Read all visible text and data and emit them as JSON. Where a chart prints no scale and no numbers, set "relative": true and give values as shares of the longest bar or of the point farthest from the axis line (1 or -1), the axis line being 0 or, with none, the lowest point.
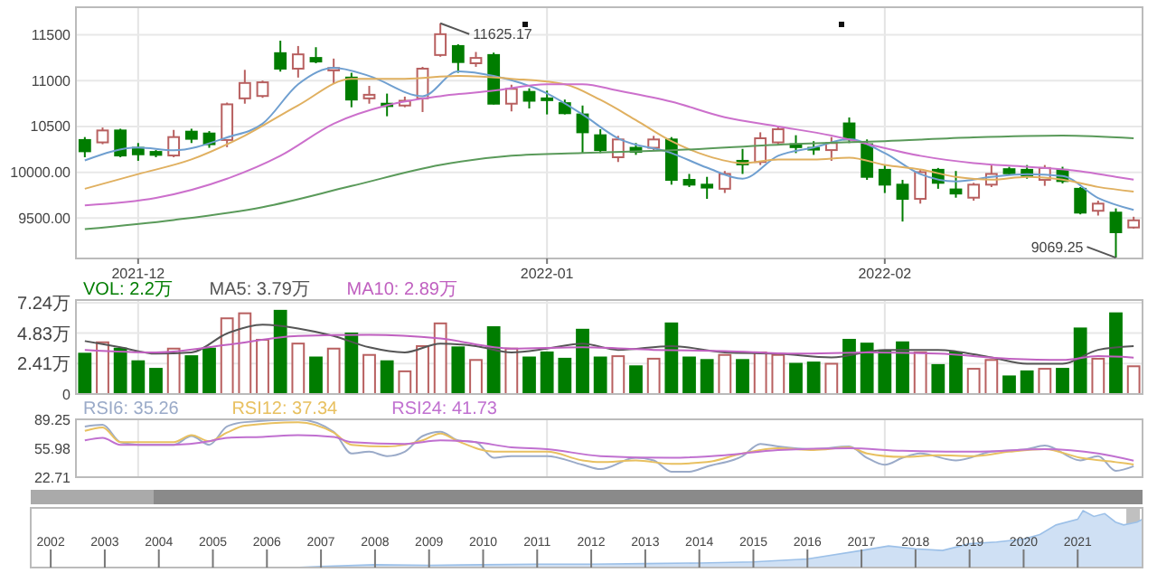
{
  "chart_data": [
    {
      "type": "candlestick",
      "categories": [
        null,
        null,
        null,
        "2021-12",
        null,
        null,
        null,
        null,
        null,
        null,
        null,
        null,
        null,
        null,
        null,
        null,
        null,
        null,
        null,
        null,
        null,
        null,
        null,
        null,
        null,
        null,
        "2022-01",
        null,
        null,
        null,
        null,
        null,
        null,
        null,
        null,
        null,
        null,
        null,
        null,
        null,
        null,
        null,
        null,
        null,
        null,
        "2022-02",
        null,
        null,
        null,
        null,
        null,
        null,
        null,
        null,
        null,
        null,
        null,
        null,
        null,
        null
      ],
      "series": [
        {
          "colors": [
            "#007d00",
            "#b86060",
            "#007d00",
            "#007d00",
            "#007d00",
            "#b86060",
            "#007d00",
            "#007d00",
            "#b86060",
            "#b86060",
            "#b86060",
            "#007d00",
            "#b86060",
            "#007d00",
            "#b86060",
            "#007d00",
            "#b86060",
            "#007d00",
            "#b86060",
            "#b86060",
            "#b86060",
            "#007d00",
            "#b86060",
            "#007d00",
            "#b86060",
            "#007d00",
            "#007d00",
            "#007d00",
            "#007d00",
            "#007d00",
            "#b86060",
            "#007d00",
            "#b86060",
            "#007d00",
            "#007d00",
            "#007d00",
            "#b86060",
            "#007d00",
            "#b86060",
            "#b86060",
            "#007d00",
            "#007d00",
            "#b86060",
            "#007d00",
            "#007d00",
            "#007d00",
            "#007d00",
            "#b86060",
            "#007d00",
            "#007d00",
            "#b86060",
            "#b86060",
            "#007d00",
            "#007d00",
            "#b86060",
            "#007d00",
            "#007d00",
            "#b86060",
            "#007d00",
            "#b86060"
          ],
          "ohlc": [
            [
              10352,
              10384,
              10164,
              10229
            ],
            [
              10326,
              10488,
              10306,
              10456
            ],
            [
              10456,
              10475,
              10164,
              10183
            ],
            [
              10267,
              10319,
              10125,
              10196
            ],
            [
              10222,
              10242,
              10164,
              10190
            ],
            [
              10183,
              10462,
              10164,
              10384
            ],
            [
              10443,
              10475,
              10319,
              10365
            ],
            [
              10423,
              10449,
              10267,
              10306
            ],
            [
              10352,
              10760,
              10274,
              10741
            ],
            [
              10806,
              11117,
              10748,
              10974
            ],
            [
              10832,
              11000,
              10812,
              10981
            ],
            [
              11299,
              11435,
              11098,
              11130
            ],
            [
              11130,
              11377,
              11033,
              11286
            ],
            [
              11247,
              11364,
              11189,
              11208
            ],
            [
              11111,
              11240,
              10968,
              11137
            ],
            [
              11033,
              11085,
              10709,
              10793
            ],
            [
              10806,
              10942,
              10748,
              10845
            ],
            [
              10748,
              10858,
              10611,
              10722
            ],
            [
              10728,
              10825,
              10709,
              10780
            ],
            [
              10806,
              11150,
              10657,
              11130
            ],
            [
              11279,
              11625.17,
              11260,
              11506
            ],
            [
              11377,
              11396,
              11085,
              11202
            ],
            [
              11189,
              11312,
              11150,
              11247
            ],
            [
              11279,
              11305,
              10740,
              10748
            ],
            [
              10748,
              10955,
              10664,
              10910
            ],
            [
              10877,
              10916,
              10696,
              10780
            ],
            [
              10806,
              10890,
              10631,
              10793
            ],
            [
              10754,
              10793,
              10631,
              10644
            ],
            [
              10631,
              10728,
              10209,
              10436
            ],
            [
              10404,
              10469,
              10209,
              10242
            ],
            [
              10164,
              10397,
              10112,
              10358
            ],
            [
              10267,
              10319,
              10190,
              10222
            ],
            [
              10267,
              10397,
              10242,
              10358
            ],
            [
              10358,
              10384,
              9865,
              9917
            ],
            [
              9917,
              9982,
              9839,
              9865
            ],
            [
              9865,
              9950,
              9710,
              9833
            ],
            [
              9820,
              10014,
              9774,
              9982
            ],
            [
              10125,
              10255,
              9982,
              10086
            ],
            [
              10112,
              10436,
              10079,
              10371
            ],
            [
              10326,
              10501,
              10293,
              10469
            ],
            [
              10306,
              10404,
              10209,
              10274
            ],
            [
              10267,
              10339,
              10190,
              10255
            ],
            [
              10242,
              10384,
              10125,
              10319
            ],
            [
              10533,
              10598,
              10319,
              10358
            ],
            [
              10306,
              10358,
              9917,
              9950
            ],
            [
              10027,
              10079,
              9774,
              9865
            ],
            [
              9865,
              9917,
              9463,
              9710
            ],
            [
              9710,
              10034,
              9658,
              10001
            ],
            [
              10027,
              10047,
              9820,
              9885
            ],
            [
              9813,
              10014,
              9723,
              9768
            ],
            [
              9723,
              9885,
              9690,
              9865
            ],
            [
              9865,
              10079,
              9839,
              9982
            ],
            [
              10034,
              10060,
              9969,
              9989
            ],
            [
              10027,
              10079,
              9930,
              9963
            ],
            [
              9917,
              10079,
              9852,
              10047
            ],
            [
              10027,
              10060,
              9878,
              9904
            ],
            [
              9820,
              9839,
              9541,
              9560
            ],
            [
              9580,
              9690,
              9528,
              9658
            ],
            [
              9560,
              9606,
              9069.25,
              9346
            ],
            [
              9398,
              9515,
              9385,
              9476
            ]
          ]
        },
        {
          "type": "line",
          "color": "#6f9fd0",
          "values": [
            10130,
            null,
            null,
            10270,
            null,
            10240,
            null,
            null,
            10380,
            null,
            10530,
            null,
            10960,
            null,
            11140,
            null,
            11050,
            null,
            null,
            10830,
            null,
            11100,
            null,
            11050,
            null,
            null,
            10860,
            null,
            10630,
            null,
            10370,
            null,
            null,
            10210,
            null,
            10050,
            null,
            9930,
            null,
            10180,
            null,
            10270,
            null,
            10360,
            null,
            10210,
            null,
            9980,
            null,
            9900,
            null,
            9950,
            null,
            9980,
            null,
            9960,
            null,
            9720,
            null,
            9590
          ]
        },
        {
          "type": "line",
          "color": "#e0b060",
          "values": [
            9820,
            null,
            null,
            9980,
            null,
            null,
            10140,
            null,
            null,
            10400,
            null,
            null,
            10730,
            null,
            null,
            11020,
            null,
            null,
            11020,
            null,
            null,
            11050,
            null,
            null,
            11020,
            null,
            null,
            10960,
            null,
            10790,
            null,
            10570,
            null,
            10340,
            null,
            10180,
            null,
            10100,
            null,
            10140,
            null,
            10140,
            null,
            10160,
            null,
            10080,
            null,
            10030,
            null,
            9950,
            null,
            9920,
            null,
            9950,
            null,
            9920,
            null,
            9840,
            null,
            9790
          ]
        },
        {
          "type": "line",
          "color": "#cc70cc",
          "values": [
            9640,
            null,
            null,
            null,
            9720,
            null,
            null,
            null,
            9930,
            null,
            null,
            10180,
            null,
            null,
            10530,
            null,
            null,
            10730,
            null,
            null,
            10830,
            null,
            null,
            10890,
            null,
            null,
            10960,
            null,
            10960,
            null,
            10890,
            null,
            null,
            10770,
            null,
            null,
            10600,
            null,
            null,
            10500,
            null,
            null,
            10400,
            null,
            10310,
            null,
            null,
            10180,
            null,
            null,
            10100,
            null,
            null,
            10060,
            null,
            null,
            10010,
            null,
            9950,
            9920
          ]
        },
        {
          "type": "line",
          "color": "#5a9a5a",
          "values": [
            9380,
            null,
            null,
            null,
            null,
            9480,
            null,
            null,
            null,
            null,
            9620,
            null,
            null,
            null,
            null,
            9850,
            null,
            null,
            null,
            null,
            10080,
            null,
            null,
            null,
            10180,
            null,
            null,
            null,
            10210,
            null,
            null,
            null,
            null,
            10240,
            null,
            null,
            null,
            null,
            null,
            null,
            10310,
            null,
            null,
            null,
            null,
            10340,
            null,
            null,
            null,
            null,
            10380,
            null,
            null,
            null,
            null,
            10400,
            null,
            null,
            null,
            10370
          ]
        }
      ],
      "ylim": [
        9060,
        11800
      ],
      "yticks": [
        11500,
        11000,
        10500,
        {
          "value": 10000,
          "label": "10000.00"
        },
        {
          "value": 9500,
          "label": "9500.00"
        }
      ],
      "grid": true,
      "annotations": [
        "11625.17",
        "9069.25"
      ]
    },
    {
      "type": "bar",
      "categories": [
        null,
        null,
        null,
        "2021-12",
        null,
        null,
        null,
        null,
        null,
        null,
        null,
        null,
        null,
        null,
        null,
        null,
        null,
        null,
        null,
        null,
        null,
        null,
        null,
        null,
        null,
        null,
        "2022-01",
        null,
        null,
        null,
        null,
        null,
        null,
        null,
        null,
        null,
        null,
        null,
        null,
        null,
        null,
        null,
        null,
        null,
        null,
        "2022-02",
        null,
        null,
        null,
        null,
        null,
        null,
        null,
        null,
        null,
        null,
        null,
        null,
        null,
        null
      ],
      "series": [
        {
          "name": "VOL: 2.2万",
          "color": "#007d00",
          "colors": [
            "#007d00",
            "#b86060",
            "#007d00",
            "#007d00",
            "#007d00",
            "#b86060",
            "#007d00",
            "#007d00",
            "#b86060",
            "#b86060",
            "#b86060",
            "#007d00",
            "#b86060",
            "#007d00",
            "#b86060",
            "#007d00",
            "#b86060",
            "#007d00",
            "#b86060",
            "#b86060",
            "#b86060",
            "#007d00",
            "#b86060",
            "#007d00",
            "#b86060",
            "#007d00",
            "#007d00",
            "#007d00",
            "#007d00",
            "#007d00",
            "#b86060",
            "#007d00",
            "#b86060",
            "#007d00",
            "#007d00",
            "#007d00",
            "#b86060",
            "#007d00",
            "#b86060",
            "#b86060",
            "#007d00",
            "#007d00",
            "#b86060",
            "#007d00",
            "#007d00",
            "#007d00",
            "#007d00",
            "#b86060",
            "#007d00",
            "#007d00",
            "#b86060",
            "#b86060",
            "#007d00",
            "#007d00",
            "#b86060",
            "#007d00",
            "#007d00",
            "#b86060",
            "#007d00",
            "#b86060"
          ],
          "values": [
            3.2,
            4.1,
            3.6,
            2.6,
            2.0,
            3.6,
            3.0,
            3.6,
            6.0,
            6.4,
            4.3,
            6.6,
            4.0,
            2.9,
            3.6,
            4.8,
            3.1,
            2.6,
            1.8,
            3.8,
            5.6,
            3.7,
            2.7,
            5.3,
            3.6,
            2.9,
            3.3,
            2.8,
            5.1,
            2.9,
            3.0,
            2.2,
            2.8,
            5.6,
            2.9,
            2.7,
            3.1,
            2.7,
            3.3,
            3.1,
            2.4,
            2.5,
            2.4,
            4.3,
            4.0,
            3.4,
            4.1,
            3.3,
            2.3,
            3.3,
            2.0,
            2.7,
            1.4,
            1.8,
            2.0,
            2.0,
            5.2,
            2.8,
            6.4,
            2.2
          ]
        },
        {
          "type": "line",
          "name": "MA5: 3.79万",
          "color": "#555555",
          "values": [
            4.2,
            null,
            3.7,
            null,
            3.2,
            null,
            3.3,
            null,
            4.8,
            null,
            5.5,
            null,
            5.2,
            null,
            4.6,
            null,
            3.7,
            null,
            3.3,
            null,
            4.0,
            null,
            3.8,
            null,
            3.3,
            null,
            3.6,
            null,
            4.0,
            null,
            3.5,
            null,
            null,
            3.8,
            null,
            null,
            3.3,
            null,
            null,
            3.2,
            null,
            null,
            2.9,
            null,
            null,
            3.5,
            null,
            null,
            3.5,
            null,
            null,
            2.9,
            null,
            2.4,
            null,
            2.4,
            null,
            3.5,
            null,
            3.79
          ]
        },
        {
          "type": "line",
          "name": "MA10: 2.89万",
          "color": "#c060c0",
          "values": [
            3.5,
            null,
            null,
            null,
            3.3,
            null,
            null,
            null,
            3.9,
            null,
            null,
            null,
            4.6,
            null,
            null,
            null,
            4.7,
            null,
            null,
            null,
            4.4,
            null,
            null,
            null,
            3.6,
            null,
            null,
            null,
            3.7,
            null,
            null,
            null,
            3.5,
            null,
            null,
            null,
            3.4,
            null,
            null,
            null,
            3.2,
            null,
            null,
            null,
            3.3,
            null,
            null,
            null,
            3.2,
            null,
            null,
            null,
            2.8,
            null,
            null,
            2.7,
            null,
            3.0,
            null,
            2.89
          ]
        }
      ],
      "ylim": [
        0,
        7.45
      ],
      "yticks": [
        0,
        {
          "value": 2.41,
          "label": "2.41万"
        },
        {
          "value": 4.83,
          "label": "4.83万"
        },
        {
          "value": 7.24,
          "label": "7.24万"
        }
      ],
      "grid": true,
      "legend": "top left",
      "tick_labels": "y"
    },
    {
      "type": "line",
      "categories": [
        null,
        null,
        null,
        "2021-12",
        null,
        null,
        null,
        null,
        null,
        null,
        null,
        null,
        null,
        null,
        null,
        null,
        null,
        null,
        null,
        null,
        null,
        null,
        null,
        null,
        null,
        null,
        "2022-01",
        null,
        null,
        null,
        null,
        null,
        null,
        null,
        null,
        null,
        null,
        null,
        null,
        null,
        null,
        null,
        null,
        null,
        null,
        "2022-02",
        null,
        null,
        null,
        null,
        null,
        null,
        null,
        null,
        null,
        null,
        null,
        null,
        null,
        null
      ],
      "series": [
        {
          "name": "RSI6: 35.26",
          "color": "#9aaac8",
          "values": [
            81,
            83,
            63,
            60,
            null,
            60,
            70,
            60,
            81,
            86,
            null,
            null,
            89,
            null,
            75,
            50,
            52,
            47,
            52,
            70,
            75,
            65,
            63,
            45,
            47,
            null,
            47,
            null,
            37,
            32,
            null,
            45,
            42,
            29,
            29,
            35,
            null,
            47,
            61,
            58,
            null,
            55,
            null,
            58,
            45,
            37,
            45,
            50,
            null,
            42,
            null,
            52,
            null,
            55,
            59,
            null,
            42,
            47,
            30,
            35.26
          ]
        },
        {
          "name": "RSI12: 37.34",
          "color": "#e8c060",
          "values": [
            76,
            80,
            63,
            null,
            null,
            63,
            71,
            64,
            74,
            82,
            null,
            null,
            86,
            null,
            74,
            60,
            null,
            58,
            60,
            65,
            73,
            64,
            null,
            52,
            null,
            null,
            52,
            null,
            42,
            40,
            null,
            42,
            null,
            38,
            null,
            40,
            null,
            50,
            null,
            56,
            null,
            54,
            null,
            57,
            50,
            null,
            46,
            null,
            48,
            null,
            47,
            null,
            52,
            null,
            55,
            null,
            45,
            null,
            40,
            37.34
          ]
        },
        {
          "name": "RSI24: 41.73",
          "color": "#c070d0",
          "values": [
            65,
            68,
            60,
            null,
            null,
            60,
            null,
            64,
            68,
            null,
            69,
            null,
            71,
            null,
            69,
            63,
            null,
            null,
            61,
            null,
            65,
            null,
            63,
            null,
            57,
            null,
            55,
            null,
            null,
            47,
            null,
            null,
            null,
            45,
            null,
            null,
            48,
            null,
            null,
            54,
            null,
            null,
            null,
            56,
            null,
            null,
            53,
            null,
            null,
            null,
            52,
            null,
            null,
            null,
            55,
            null,
            null,
            50,
            null,
            41.73
          ]
        }
      ],
      "ylim": [
        22.71,
        89.25
      ],
      "yticks": [
        89.25,
        55.98,
        22.71
      ],
      "grid": "x",
      "legend": "top left",
      "tick_labels": "y"
    },
    {
      "type": "area",
      "relative": true,
      "series": [
        {
          "color": "#cfe0f4",
          "x": [
            2001.63,
            2006.5,
            2007,
            2008,
            2009,
            2010,
            2011,
            2012,
            2013,
            2014,
            2015,
            2016,
            2017,
            2017.5,
            2018,
            2018.5,
            2019,
            2019.5,
            2020,
            2020.3,
            2020.6,
            2021,
            2021.1,
            2021.3,
            2021.5,
            2021.7,
            2021.85,
            2022.1,
            2022.2
          ],
          "values": [
            0,
            0,
            0.02,
            0.05,
            0.04,
            0.05,
            0.06,
            0.06,
            0.07,
            0.08,
            0.1,
            0.15,
            0.3,
            0.38,
            0.33,
            0.3,
            0.42,
            0.45,
            0.5,
            0.58,
            0.75,
            0.85,
            1,
            0.9,
            0.95,
            0.8,
            0.75,
            0.8,
            0.85
          ]
        }
      ],
      "xlim": [
        2001.63,
        2022.2
      ],
      "xticks": [
        2002,
        2003,
        2004,
        2005,
        2006,
        2007,
        2008,
        2009,
        2010,
        2011,
        2012,
        2013,
        2014,
        2015,
        2016,
        2017,
        2018,
        2019,
        2020,
        2021
      ],
      "bands": [
        {
          "axis": "x",
          "from": 2021.9,
          "to": 2022.15,
          "color": "#b0b0b0"
        }
      ]
    }
  ]
}
